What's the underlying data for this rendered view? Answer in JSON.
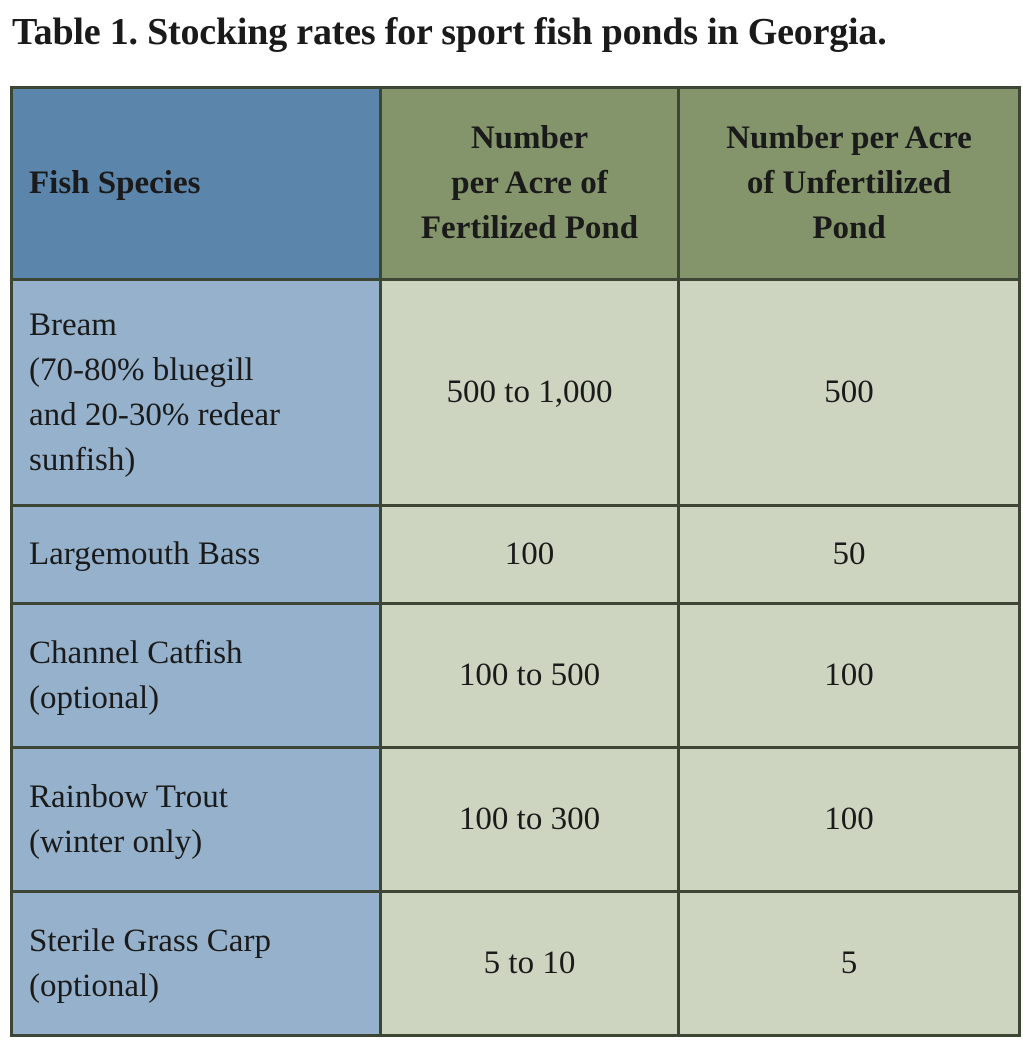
{
  "caption": "Table 1. Stocking rates for sport fish ponds in Georgia.",
  "headers": {
    "species": "Fish Species",
    "fertilized": [
      "Number",
      "per Acre of",
      "Fertilized Pond"
    ],
    "unfertilized": [
      "Number per Acre",
      "of Unfertilized",
      "Pond"
    ]
  },
  "rows": [
    {
      "species": [
        "Bream",
        "(70-80% bluegill",
        "and 20-30% redear",
        "sunfish)"
      ],
      "fertilized": "500 to 1,000",
      "unfertilized": "500"
    },
    {
      "species": [
        "Largemouth Bass"
      ],
      "fertilized": "100",
      "unfertilized": "50"
    },
    {
      "species": [
        "Channel Catfish",
        "(optional)"
      ],
      "fertilized": "100 to 500",
      "unfertilized": "100"
    },
    {
      "species": [
        "Rainbow Trout",
        "(winter only)"
      ],
      "fertilized": "100 to 300",
      "unfertilized": "100"
    },
    {
      "species": [
        "Sterile Grass Carp",
        "(optional)"
      ],
      "fertilized": "5 to 10",
      "unfertilized": "5"
    }
  ]
}
